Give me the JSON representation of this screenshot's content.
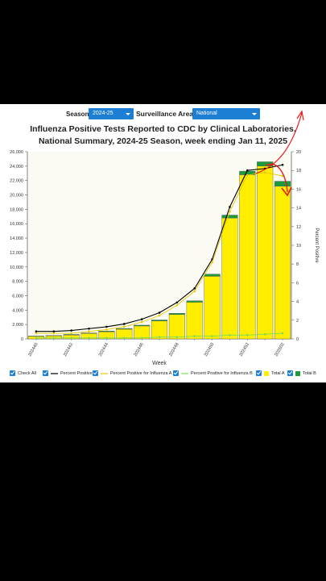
{
  "controls": {
    "season_label": "Season:",
    "season_value": "2024-25",
    "area_label": "Surveillance Area:",
    "area_value": "National"
  },
  "chart_title_line1": "Influenza Positive Tests Reported to CDC by Clinical Laboratories,",
  "chart_title_line2": "National Summary, 2024-25 Season, week ending Jan 11, 2025",
  "chart_data": {
    "type": "bar",
    "title": "Influenza Positive Tests Reported to CDC by Clinical Laboratories, National Summary, 2024-25 Season, week ending Jan 11, 2025",
    "xlabel": "Week",
    "ylabel_right": "Percent Positive",
    "categories": [
      "202440",
      "202441",
      "202442",
      "202443",
      "202444",
      "202445",
      "202446",
      "202447",
      "202448",
      "202449",
      "202450",
      "202451",
      "202452",
      "202501",
      "202502"
    ],
    "x_tick_labels": [
      "202440",
      "202442",
      "202444",
      "202446",
      "202448",
      "202450",
      "202452",
      "202502"
    ],
    "ylim_left": [
      0,
      26000
    ],
    "yticks_left": [
      "0",
      "2,000",
      "4,000",
      "6,000",
      "8,000",
      "10,000",
      "12,000",
      "14,000",
      "16,000",
      "18,000",
      "20,000",
      "22,000",
      "24,000",
      "26,000"
    ],
    "ylim_right": [
      0,
      20
    ],
    "yticks_right": [
      "0",
      "2",
      "4",
      "6",
      "8",
      "10",
      "12",
      "14",
      "16",
      "18",
      "20"
    ],
    "stacked_bars": [
      {
        "name": "Total A",
        "color": "#ffee00",
        "values": [
          350,
          420,
          550,
          750,
          1000,
          1350,
          1800,
          2500,
          3400,
          5100,
          8700,
          16800,
          22800,
          24000,
          21200
        ]
      },
      {
        "name": "Total B",
        "color": "#1a9c3b",
        "values": [
          50,
          60,
          70,
          80,
          90,
          100,
          110,
          130,
          160,
          200,
          300,
          400,
          500,
          600,
          700
        ]
      }
    ],
    "lines": [
      {
        "name": "Percent Positive",
        "color": "#000000",
        "values": [
          0.8,
          0.8,
          0.9,
          1.1,
          1.3,
          1.6,
          2.1,
          2.8,
          3.9,
          5.4,
          8.5,
          14.1,
          18.0,
          18.2,
          18.6
        ]
      },
      {
        "name": "Percent Positive for Influenza A",
        "color": "#e6c800",
        "values": [
          0.6,
          0.6,
          0.6,
          0.8,
          1.0,
          1.3,
          1.8,
          2.5,
          3.6,
          5.1,
          8.2,
          13.6,
          17.5,
          17.8,
          17.4
        ]
      },
      {
        "name": "Percent Positive for Influenza B",
        "color": "#7ddc5a",
        "values": [
          0.1,
          0.1,
          0.1,
          0.1,
          0.1,
          0.1,
          0.1,
          0.2,
          0.2,
          0.3,
          0.3,
          0.4,
          0.4,
          0.5,
          0.6
        ]
      }
    ]
  },
  "legend": {
    "check_all": "Check All",
    "items": [
      "Percent Positive",
      "Percent Positive for Influenza A",
      "Percent Positive for Influenza B",
      "Total A",
      "Total B"
    ]
  }
}
